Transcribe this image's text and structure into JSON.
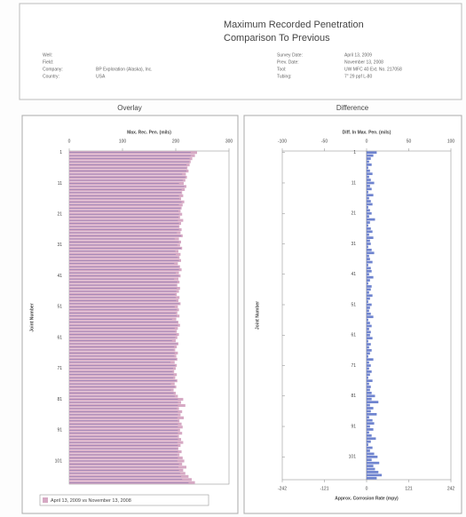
{
  "header": {
    "title_line1": "Maximum Recorded Penetration",
    "title_line2": "Comparison To Previous",
    "left_fields": [
      {
        "label": "Well:"
      },
      {
        "label": "Field:"
      },
      {
        "label": "Company:",
        "value": "BP Exploration (Alaska), Inc."
      },
      {
        "label": "Country:",
        "value": "USA"
      }
    ],
    "right_fields": [
      {
        "label": "Survey Date:",
        "value": "April 13, 2009"
      },
      {
        "label": "Prev. Date:",
        "value": "November 13, 2008"
      },
      {
        "label": "Tool:",
        "value": "UW MFC 40 Ext. No. 217058"
      },
      {
        "label": "Tubing:",
        "value": "7\" 29 ppf L-80"
      }
    ]
  },
  "chart_data": [
    {
      "type": "bar",
      "panel_title": "Overlay",
      "title": "Max. Rec. Pen. (mils)",
      "y_label": "Joint Number",
      "legend": "April 13, 2009 vs November 13, 2008",
      "joints": [
        1,
        2,
        3,
        4,
        5,
        6,
        7,
        8,
        9,
        10,
        11,
        12,
        13,
        14,
        15,
        16,
        17,
        18,
        19,
        20,
        21,
        22,
        23,
        24,
        25,
        26,
        27,
        28,
        29,
        30,
        31,
        32,
        33,
        34,
        35,
        36,
        37,
        38,
        39,
        40,
        41,
        42,
        43,
        44,
        45,
        46,
        47,
        48,
        49,
        50,
        51,
        52,
        53,
        54,
        55,
        56,
        57,
        58,
        59,
        60,
        61,
        62,
        63,
        64,
        65,
        66,
        67,
        68,
        69,
        70,
        71,
        72,
        73,
        74,
        75,
        76,
        77,
        78,
        79,
        80,
        81,
        82,
        83,
        84,
        85,
        86,
        87,
        88,
        89,
        90,
        91,
        92,
        93,
        94,
        95,
        96,
        97,
        98,
        99,
        100,
        101,
        102,
        103,
        104,
        105,
        106,
        107,
        108
      ],
      "series": [
        {
          "color": "#d6a9c4",
          "values": [
            240,
            236,
            231,
            228,
            226,
            222,
            224,
            219,
            221,
            218,
            215,
            220,
            217,
            212,
            214,
            210,
            216,
            213,
            211,
            209,
            212,
            208,
            214,
            210,
            207,
            211,
            209,
            213,
            206,
            210,
            208,
            212,
            205,
            209,
            207,
            210,
            204,
            208,
            211,
            206,
            209,
            205,
            207,
            203,
            208,
            206,
            202,
            207,
            205,
            209,
            204,
            206,
            203,
            207,
            201,
            205,
            208,
            204,
            202,
            206,
            203,
            200,
            205,
            202,
            199,
            204,
            201,
            203,
            198,
            202,
            200,
            197,
            202,
            199,
            203,
            198,
            201,
            196,
            200,
            204,
            214,
            210,
            218,
            206,
            212,
            209,
            215,
            207,
            211,
            213,
            208,
            212,
            206,
            210,
            214,
            209,
            205,
            211,
            207,
            213,
            216,
            212,
            220,
            214,
            218,
            224,
            230,
            236
          ]
        },
        {
          "color": "#7a6fae",
          "values": [
            228,
            228,
            226,
            225,
            220,
            220,
            220,
            212,
            218,
            213,
            206,
            216,
            211,
            210,
            206,
            207,
            211,
            206,
            209,
            205,
            206,
            205,
            204,
            206,
            205,
            206,
            202,
            210,
            198,
            206,
            203,
            210,
            199,
            200,
            204,
            206,
            197,
            206,
            206,
            200,
            206,
            197,
            203,
            201,
            202,
            201,
            199,
            200,
            201,
            207,
            198,
            202,
            200,
            202,
            193,
            203,
            204,
            198,
            199,
            201,
            199,
            193,
            203,
            197,
            196,
            198,
            197,
            201,
            190,
            199,
            195,
            194,
            196,
            195,
            201,
            191,
            198,
            191,
            196,
            198,
            204,
            204,
            204,
            202,
            204,
            204,
            203,
            204,
            204,
            204,
            204,
            204,
            203,
            204,
            203,
            204,
            203,
            204,
            203,
            204,
            203,
            206,
            205,
            206,
            208,
            210,
            212,
            224
          ]
        }
      ],
      "xlim": [
        0,
        300
      ],
      "xticks": [
        0,
        100,
        200,
        300
      ],
      "ylim": [
        0.5,
        108.5
      ],
      "yticks": [
        1,
        11,
        21,
        31,
        41,
        51,
        61,
        71,
        81,
        91,
        101
      ]
    },
    {
      "type": "diff",
      "panel_title": "Difference",
      "title": "Diff. In Max. Pen. (mils)",
      "y_label": "Joint Number",
      "x2_label": "Approx. Corrosion Rate (mpy)",
      "color": "#6f84cf",
      "values": [
        12,
        8,
        5,
        3,
        6,
        2,
        4,
        7,
        3,
        5,
        9,
        4,
        6,
        2,
        8,
        3,
        5,
        7,
        2,
        4,
        6,
        3,
        10,
        4,
        2,
        5,
        7,
        3,
        8,
        4,
        5,
        2,
        6,
        9,
        3,
        4,
        7,
        2,
        5,
        6,
        3,
        8,
        4,
        2,
        6,
        5,
        3,
        7,
        4,
        2,
        6,
        4,
        3,
        5,
        8,
        2,
        4,
        6,
        3,
        5,
        4,
        7,
        2,
        5,
        3,
        6,
        4,
        2,
        8,
        3,
        5,
        3,
        6,
        4,
        2,
        7,
        3,
        5,
        4,
        6,
        10,
        6,
        14,
        4,
        8,
        5,
        12,
        3,
        7,
        9,
        4,
        8,
        3,
        6,
        11,
        5,
        2,
        7,
        4,
        9,
        13,
        6,
        15,
        8,
        10,
        14,
        18,
        12
      ],
      "xlim": [
        -100,
        100
      ],
      "xticks": [
        -100,
        -50,
        0,
        50,
        100
      ],
      "x2lim": [
        -242,
        242
      ],
      "x2ticks": [
        -242,
        -121,
        0,
        121,
        242
      ],
      "ylim": [
        0.5,
        108.5
      ],
      "yticks": [
        1,
        11,
        21,
        31,
        41,
        51,
        61,
        71,
        81,
        91,
        101
      ]
    }
  ]
}
